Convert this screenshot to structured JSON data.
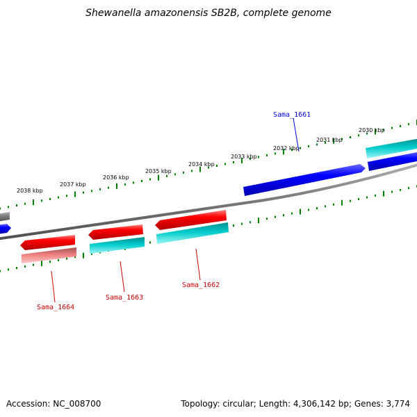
{
  "title": "Shewanella amazonensis SB2B, complete genome",
  "ticks": [
    {
      "label": "2038 kbp"
    },
    {
      "label": "2037 kbp"
    },
    {
      "label": "2036 kbp"
    },
    {
      "label": "2035 kbp"
    },
    {
      "label": "2034 kbp"
    },
    {
      "label": "2033 kbp"
    },
    {
      "label": "2032 kbp"
    },
    {
      "label": "2031 kbp"
    },
    {
      "label": "2030 kbp"
    }
  ],
  "genes": [
    {
      "name": "Sama_1661",
      "strand": "forward",
      "color": "#0000dd"
    },
    {
      "name": "Sama_1662",
      "strand": "reverse",
      "color": "#cc0000"
    },
    {
      "name": "Sama_1663",
      "strand": "reverse",
      "color": "#cc0000"
    },
    {
      "name": "Sama_1664",
      "strand": "reverse",
      "color": "#cc0000"
    }
  ],
  "colors": {
    "cds_forward": "#0000ff",
    "cds_reverse": "#ff0000",
    "gene_teal": "#00cccc",
    "backbone": "#808080",
    "ticks": "#008000",
    "pseudo": "#f08080"
  },
  "footer": {
    "accession": "Accession: NC_008700",
    "topology": "Topology: circular; Length: 4,306,142 bp; Genes: 3,774"
  }
}
